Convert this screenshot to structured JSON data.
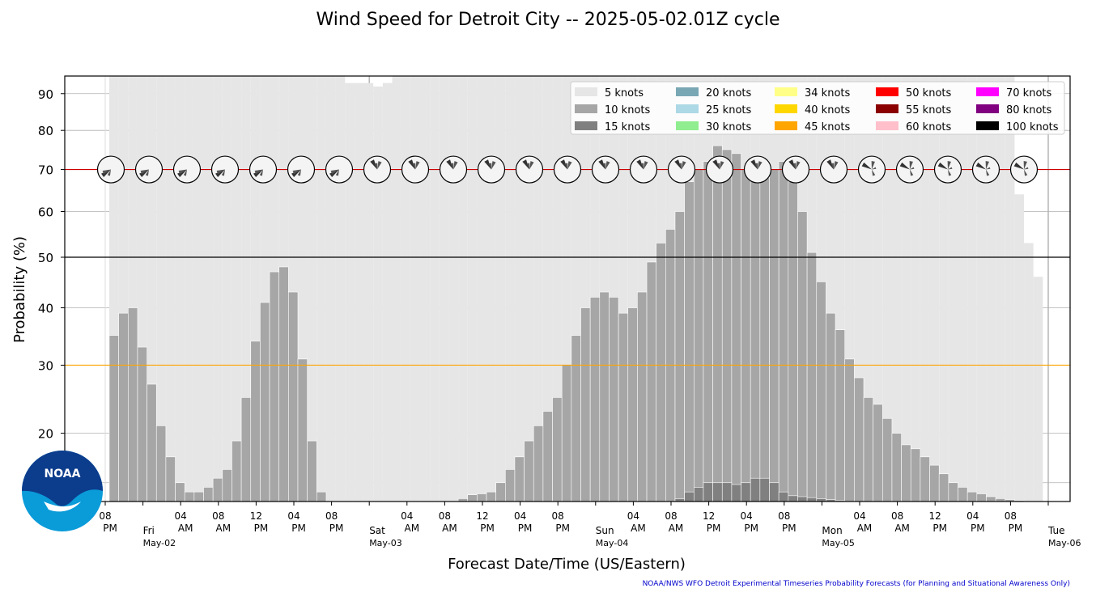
{
  "title": "Wind Speed for Detroit City -- 2025-05-02.01Z cycle",
  "footer": "NOAA/NWS WFO Detroit Experimental Timeseries Probability Forecasts (for Planning and Situational Awareness Only)",
  "logo_text": "NOAA",
  "chart_data": {
    "type": "bar",
    "xlabel": "Forecast Date/Time (US/Eastern)",
    "ylabel": "Probability (%)",
    "ylim": [
      12,
      95
    ],
    "y_scale": "sqrt",
    "yticks": [
      20,
      30,
      40,
      50,
      60,
      70,
      80,
      90
    ],
    "grid": true,
    "legend_position": "top-right",
    "reference_lines": [
      {
        "y": 30,
        "color": "#ffa500"
      },
      {
        "y": 50,
        "color": "#000000"
      },
      {
        "y": 70,
        "color": "#cc0000"
      }
    ],
    "x_tick_labels": [
      {
        "hour": 0,
        "label": [
          "08",
          "PM"
        ]
      },
      {
        "hour": 8,
        "label": [
          "04",
          "AM"
        ]
      },
      {
        "hour": 12,
        "label": [
          "08",
          "AM"
        ]
      },
      {
        "hour": 16,
        "label": [
          "12",
          "PM"
        ]
      },
      {
        "hour": 20,
        "label": [
          "04",
          "PM"
        ]
      },
      {
        "hour": 24,
        "label": [
          "08",
          "PM"
        ]
      },
      {
        "hour": 32,
        "label": [
          "04",
          "AM"
        ]
      },
      {
        "hour": 36,
        "label": [
          "08",
          "AM"
        ]
      },
      {
        "hour": 40,
        "label": [
          "12",
          "PM"
        ]
      },
      {
        "hour": 44,
        "label": [
          "04",
          "PM"
        ]
      },
      {
        "hour": 48,
        "label": [
          "08",
          "PM"
        ]
      },
      {
        "hour": 56,
        "label": [
          "04",
          "AM"
        ]
      },
      {
        "hour": 60,
        "label": [
          "08",
          "AM"
        ]
      },
      {
        "hour": 64,
        "label": [
          "12",
          "PM"
        ]
      },
      {
        "hour": 68,
        "label": [
          "04",
          "PM"
        ]
      },
      {
        "hour": 72,
        "label": [
          "08",
          "PM"
        ]
      },
      {
        "hour": 80,
        "label": [
          "04",
          "AM"
        ]
      },
      {
        "hour": 84,
        "label": [
          "08",
          "AM"
        ]
      },
      {
        "hour": 88,
        "label": [
          "12",
          "PM"
        ]
      },
      {
        "hour": 92,
        "label": [
          "04",
          "PM"
        ]
      },
      {
        "hour": 96,
        "label": [
          "08",
          "PM"
        ]
      }
    ],
    "day_labels": [
      {
        "hour": 4,
        "label": [
          "Fri",
          "May-02"
        ]
      },
      {
        "hour": 28,
        "label": [
          "Sat",
          "May-03"
        ]
      },
      {
        "hour": 52,
        "label": [
          "Sun",
          "May-04"
        ]
      },
      {
        "hour": 76,
        "label": [
          "Mon",
          "May-05"
        ]
      },
      {
        "hour": 100,
        "label": [
          "Tue",
          "May-06"
        ]
      }
    ],
    "legend": [
      {
        "label": "5 knots",
        "color": "#e6e6e6"
      },
      {
        "label": "10 knots",
        "color": "#a6a6a6"
      },
      {
        "label": "15 knots",
        "color": "#808080"
      },
      {
        "label": "20 knots",
        "color": "#79a8b4"
      },
      {
        "label": "25 knots",
        "color": "#add8e6"
      },
      {
        "label": "30 knots",
        "color": "#90ee90"
      },
      {
        "label": "34 knots",
        "color": "#ffff88"
      },
      {
        "label": "40 knots",
        "color": "#ffd700"
      },
      {
        "label": "45 knots",
        "color": "#ffa500"
      },
      {
        "label": "50 knots",
        "color": "#ff0000"
      },
      {
        "label": "55 knots",
        "color": "#8b0000"
      },
      {
        "label": "60 knots",
        "color": "#ffc0cb"
      },
      {
        "label": "70 knots",
        "color": "#ff00ff"
      },
      {
        "label": "80 knots",
        "color": "#800080"
      },
      {
        "label": "100 knots",
        "color": "#000000"
      }
    ],
    "series": [
      {
        "name": "5 knots",
        "color": "#e6e6e6",
        "start_hour": 0,
        "step_hours": 1,
        "values": [
          95,
          95,
          95,
          95,
          95,
          95,
          95,
          95,
          95,
          95,
          95,
          95,
          95,
          95,
          95,
          95,
          95,
          95,
          95,
          95,
          95,
          95,
          95,
          95,
          95,
          93,
          93,
          93,
          92,
          93,
          95,
          95,
          95,
          95,
          95,
          95,
          95,
          95,
          95,
          95,
          95,
          95,
          95,
          95,
          95,
          95,
          95,
          95,
          95,
          95,
          95,
          95,
          95,
          95,
          95,
          95,
          95,
          95,
          95,
          95,
          95,
          95,
          95,
          95,
          95,
          95,
          95,
          95,
          95,
          95,
          95,
          95,
          95,
          95,
          95,
          95,
          95,
          95,
          95,
          95,
          95,
          95,
          95,
          95,
          95,
          95,
          95,
          95,
          95,
          95,
          95,
          95,
          95,
          95,
          95,
          95,
          64,
          53,
          46
        ]
      },
      {
        "name": "10 knots",
        "color": "#a6a6a6",
        "start_hour": 0,
        "step_hours": 1,
        "values": [
          35,
          39,
          40,
          33,
          27,
          21,
          17,
          14,
          13,
          13,
          13.5,
          14.5,
          15.5,
          19,
          25,
          34,
          41,
          47,
          48,
          43,
          31,
          19,
          13,
          12,
          12,
          12,
          12,
          12,
          12,
          12,
          12,
          12,
          12,
          12,
          12,
          12,
          12,
          12.3,
          12.7,
          12.8,
          13,
          14,
          15.5,
          17,
          19,
          21,
          23,
          25,
          30,
          35,
          40,
          42,
          43,
          42,
          39,
          40,
          43,
          49,
          53,
          56,
          60,
          67,
          70,
          72,
          76,
          75,
          74,
          70,
          68,
          68,
          70,
          72,
          67,
          60,
          51,
          45,
          39,
          36,
          31,
          28,
          25,
          24,
          22,
          20,
          18.5,
          18,
          17,
          16,
          15,
          14,
          13.5,
          13,
          12.8,
          12.5,
          12.3,
          12.2,
          12.1,
          12,
          12
        ]
      },
      {
        "name": "15 knots",
        "color": "#808080",
        "start_hour": 0,
        "step_hours": 1,
        "values": [
          12,
          12,
          12,
          12,
          12,
          12,
          12,
          12,
          12,
          12,
          12,
          12,
          12,
          12,
          12,
          12,
          12,
          12,
          12,
          12,
          12,
          12,
          12,
          12,
          12,
          12,
          12,
          12,
          12,
          12,
          12,
          12,
          12,
          12,
          12,
          12,
          12,
          12,
          12,
          12,
          12,
          12,
          12,
          12,
          12,
          12,
          12,
          12,
          12,
          12,
          12,
          12,
          12,
          12,
          12,
          12,
          12,
          12,
          12,
          12,
          12.3,
          13,
          13.5,
          14,
          14,
          14,
          13.8,
          14,
          14.5,
          14.5,
          14,
          13,
          12.6,
          12.5,
          12.4,
          12.3,
          12.2,
          12.1,
          12,
          12,
          12,
          12,
          12,
          12,
          12,
          12,
          12,
          12,
          12,
          12,
          12,
          12,
          12,
          12,
          12,
          12,
          12,
          12,
          12
        ]
      }
    ],
    "wind_rose_hours": [
      0,
      4,
      8,
      12,
      16,
      20,
      24,
      28,
      32,
      36,
      40,
      44,
      48,
      52,
      56,
      60,
      64,
      68,
      72,
      76,
      80,
      84,
      88,
      92,
      96
    ]
  }
}
